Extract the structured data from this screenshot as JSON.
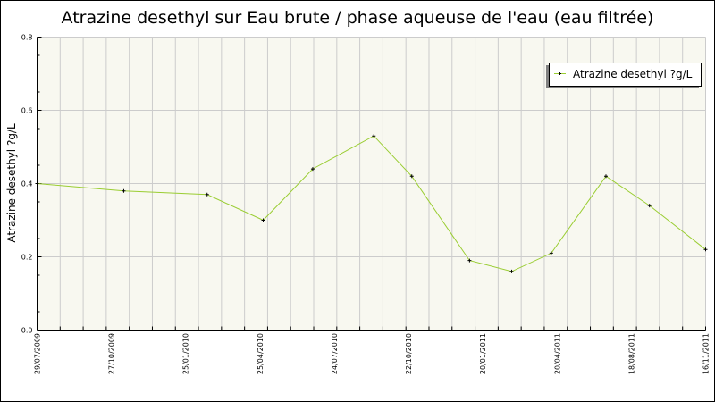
{
  "chart_data": {
    "type": "line",
    "title": "Atrazine desethyl sur Eau brute / phase aqueuse de l'eau (eau filtrée)",
    "xlabel": "",
    "ylabel": "Atrazine desethyl ?g/L",
    "ylim": [
      0,
      0.8
    ],
    "y_ticks": [
      "0.0",
      "0.2",
      "0.4",
      "0.6",
      "0.8"
    ],
    "x_tick_labels": [
      "29/07/2009",
      "27/10/2009",
      "25/01/2010",
      "25/04/2010",
      "24/07/2010",
      "22/10/2010",
      "20/01/2011",
      "20/04/2011",
      "18/08/2011",
      "16/11/2011"
    ],
    "grid": true,
    "legend_position": "top-right",
    "plot_background": "#f8f8f0",
    "series": [
      {
        "name": "Atrazine desethyl ?g/L",
        "color": "#9acd32",
        "marker": "plus",
        "x": [
          "29/07/2009",
          "11/11/2009",
          "20/02/2010",
          "29/04/2010",
          "28/06/2010",
          "10/09/2010",
          "26/10/2010",
          "04/01/2011",
          "24/02/2011",
          "13/04/2011",
          "08/07/2011",
          "09/09/2011",
          "16/11/2011"
        ],
        "values": [
          0.4,
          0.38,
          0.37,
          0.3,
          0.44,
          0.53,
          0.42,
          0.19,
          0.16,
          0.21,
          0.42,
          0.34,
          0.22
        ]
      }
    ]
  }
}
